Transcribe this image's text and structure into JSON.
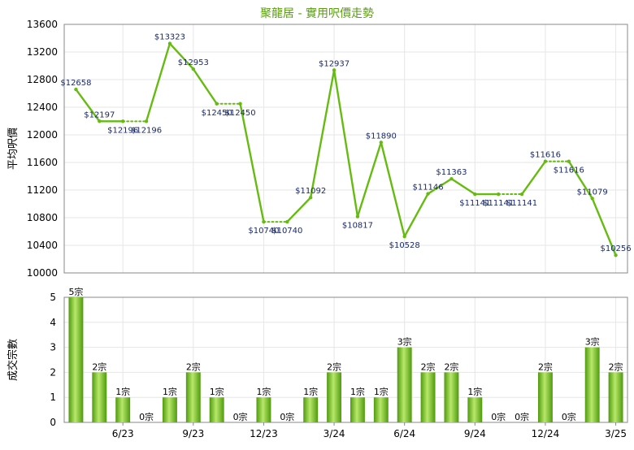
{
  "chart_data": [
    {
      "type": "line",
      "title": "聚龍居 - 實用呎價走勢",
      "ylabel": "平均呎價",
      "ylim": [
        10000,
        13600
      ],
      "yticks": [
        10000,
        10400,
        10800,
        11200,
        11600,
        12000,
        12400,
        12800,
        13200,
        13600
      ],
      "grid": true,
      "series": [
        {
          "values": [
            12658,
            12197,
            12196,
            12196,
            13323,
            12953,
            12450,
            12450,
            10740,
            10740,
            11092,
            12937,
            10817,
            11890,
            10528,
            11146,
            11363,
            11141,
            11141,
            11141,
            11616,
            11616,
            11079,
            10256
          ],
          "labels": [
            "$12658",
            "$12197",
            "$12196",
            "$12196",
            "$13323",
            "$12953",
            "$12450",
            "$12450",
            "$10740",
            "$10740",
            "$11092",
            "$12937",
            "$10817",
            "$11890",
            "$10528",
            "$11146",
            "$11363",
            "$11141",
            "$11141",
            "$11141",
            "$11616",
            "$11616",
            "$11079",
            "$10256"
          ],
          "dotted_segments": [
            2,
            6,
            8,
            18,
            20
          ]
        }
      ]
    },
    {
      "type": "bar",
      "ylabel": "成交宗數",
      "ylim": [
        0,
        5
      ],
      "yticks": [
        0,
        1,
        2,
        3,
        4,
        5
      ],
      "x_tick_labels": [
        {
          "index": 2,
          "label": "6/23"
        },
        {
          "index": 5,
          "label": "9/23"
        },
        {
          "index": 8,
          "label": "12/23"
        },
        {
          "index": 11,
          "label": "3/24"
        },
        {
          "index": 14,
          "label": "6/24"
        },
        {
          "index": 17,
          "label": "9/24"
        },
        {
          "index": 20,
          "label": "12/24"
        },
        {
          "index": 23,
          "label": "3/25"
        }
      ],
      "values": [
        5,
        2,
        1,
        0,
        1,
        2,
        1,
        0,
        1,
        0,
        1,
        2,
        1,
        1,
        3,
        2,
        2,
        1,
        0,
        0,
        2,
        0,
        3,
        2
      ],
      "labels": [
        "5宗",
        "2宗",
        "1宗",
        "0宗",
        "1宗",
        "2宗",
        "1宗",
        "0宗",
        "1宗",
        "0宗",
        "1宗",
        "2宗",
        "1宗",
        "1宗",
        "3宗",
        "2宗",
        "2宗",
        "1宗",
        "0宗",
        "0宗",
        "2宗",
        "0宗",
        "3宗",
        "2宗"
      ]
    }
  ],
  "colors": {
    "title": "#5a9e10",
    "line": "#66bb11",
    "bar_dark": "#4f9a0e",
    "bar_light": "#b8e86a",
    "grid": "#e6e6e6",
    "axis": "#888888",
    "text": "#000000",
    "value_label": "#1a2a6a"
  }
}
